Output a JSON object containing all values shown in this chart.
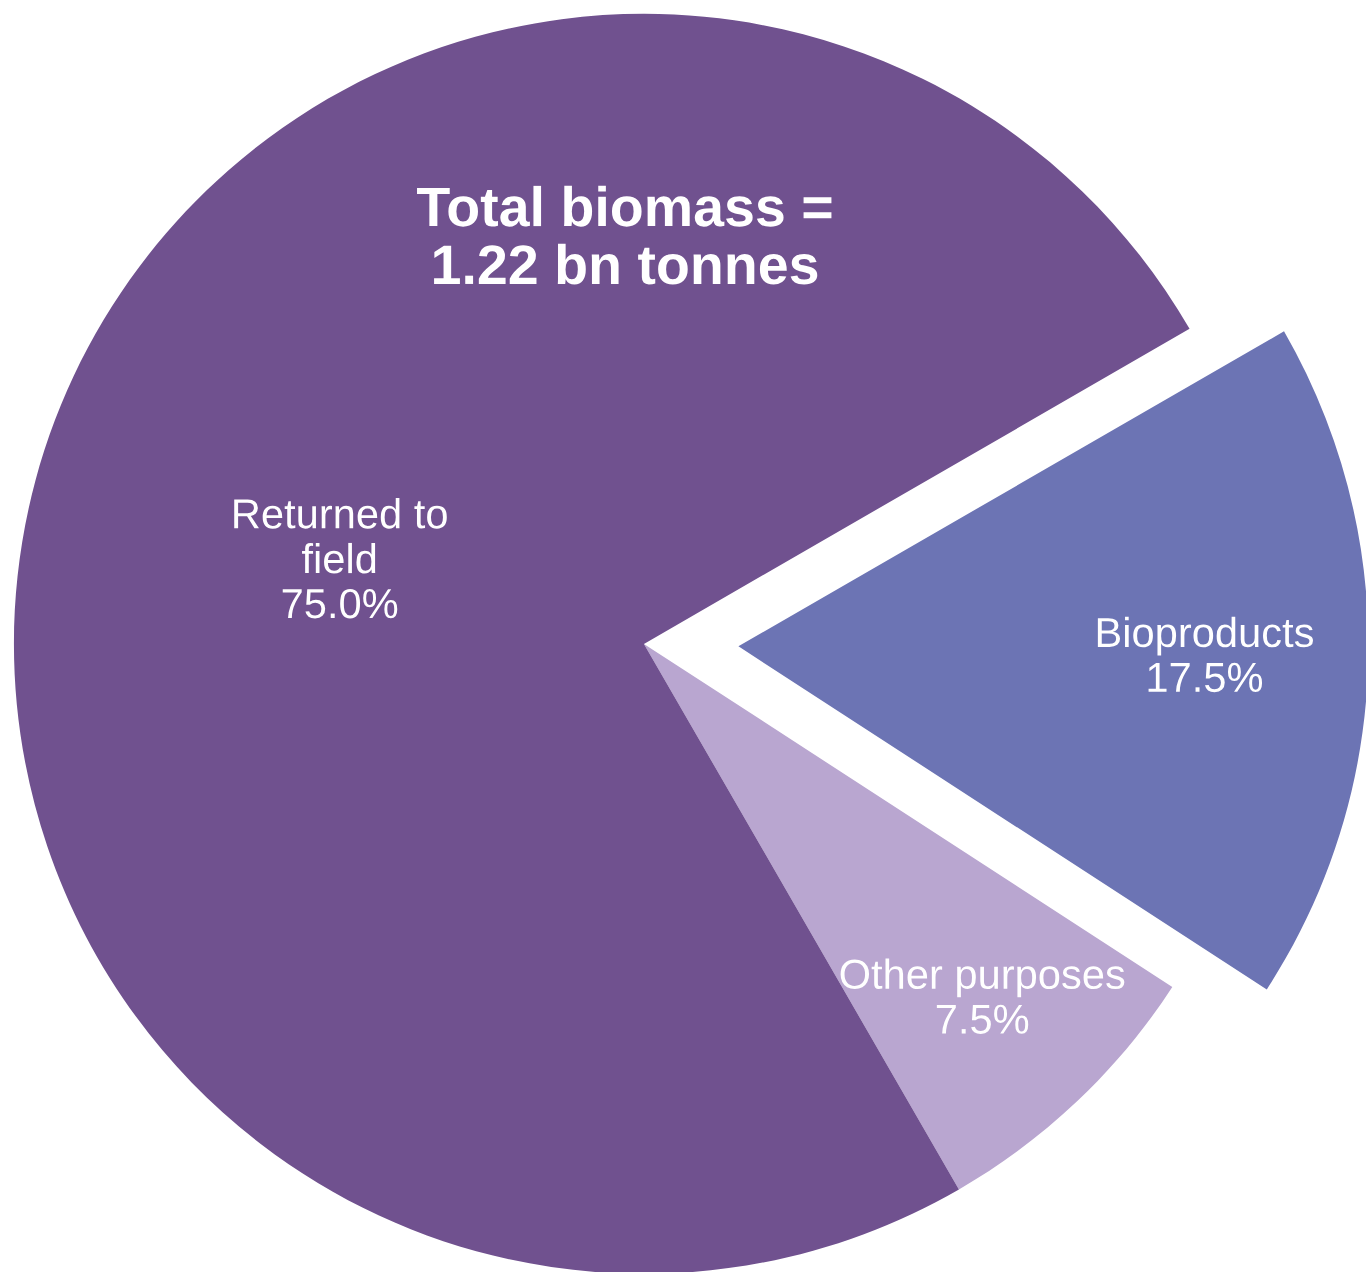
{
  "chart_data": {
    "type": "pie",
    "title": "Total biomass =\n1.22 bn tonnes",
    "categories": [
      "Bioproducts",
      "Other purposes",
      "Returned to\nfield"
    ],
    "values": [
      17.5,
      7.5,
      75.0
    ],
    "value_labels": [
      "17.5%",
      "7.5%",
      "75.0%"
    ],
    "colors": [
      "#6c74b4",
      "#b9a6d0",
      "#70518f"
    ],
    "legend": false
  }
}
